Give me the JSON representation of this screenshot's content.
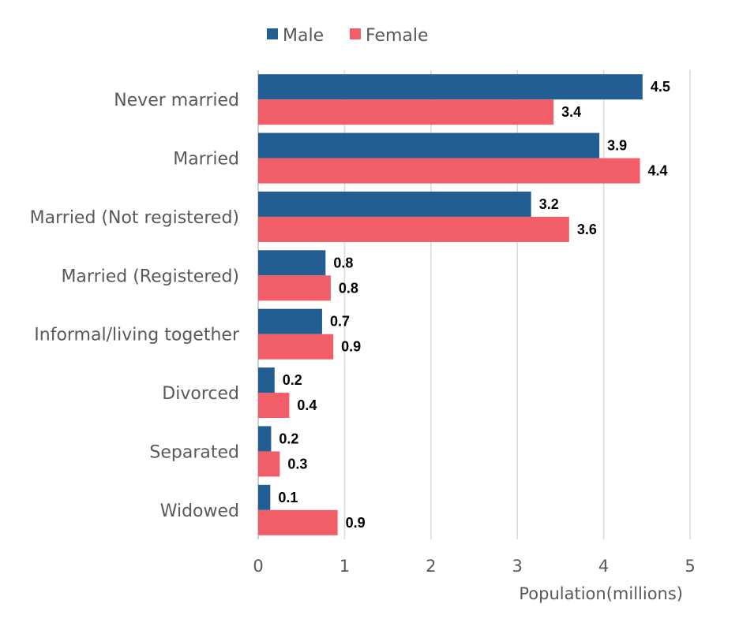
{
  "chart_data": {
    "type": "bar",
    "orientation": "horizontal",
    "categories": [
      "Never married",
      "Married",
      "Married (Not registered)",
      "Married (Registered)",
      "Informal/living together",
      "Divorced",
      "Separated",
      "Widowed"
    ],
    "series": [
      {
        "name": "Male",
        "color": "#225E91",
        "values": [
          4.45,
          3.95,
          3.16,
          0.78,
          0.74,
          0.19,
          0.15,
          0.14
        ],
        "labels": [
          "4.5",
          "3.9",
          "3.2",
          "0.8",
          "0.7",
          "0.2",
          "0.2",
          "0.1"
        ]
      },
      {
        "name": "Female",
        "color": "#F15E67",
        "values": [
          3.42,
          4.42,
          3.6,
          0.84,
          0.87,
          0.36,
          0.25,
          0.92
        ],
        "labels": [
          "3.4",
          "4.4",
          "3.6",
          "0.8",
          "0.9",
          "0.4",
          "0.3",
          "0.9"
        ]
      }
    ],
    "title": "",
    "xlabel": "Population(millions)",
    "ylabel": "",
    "xlim": [
      0,
      5
    ],
    "xticks": [
      "0",
      "1",
      "2",
      "3",
      "4",
      "5"
    ],
    "grid": "vertical",
    "legend_position": "top"
  }
}
